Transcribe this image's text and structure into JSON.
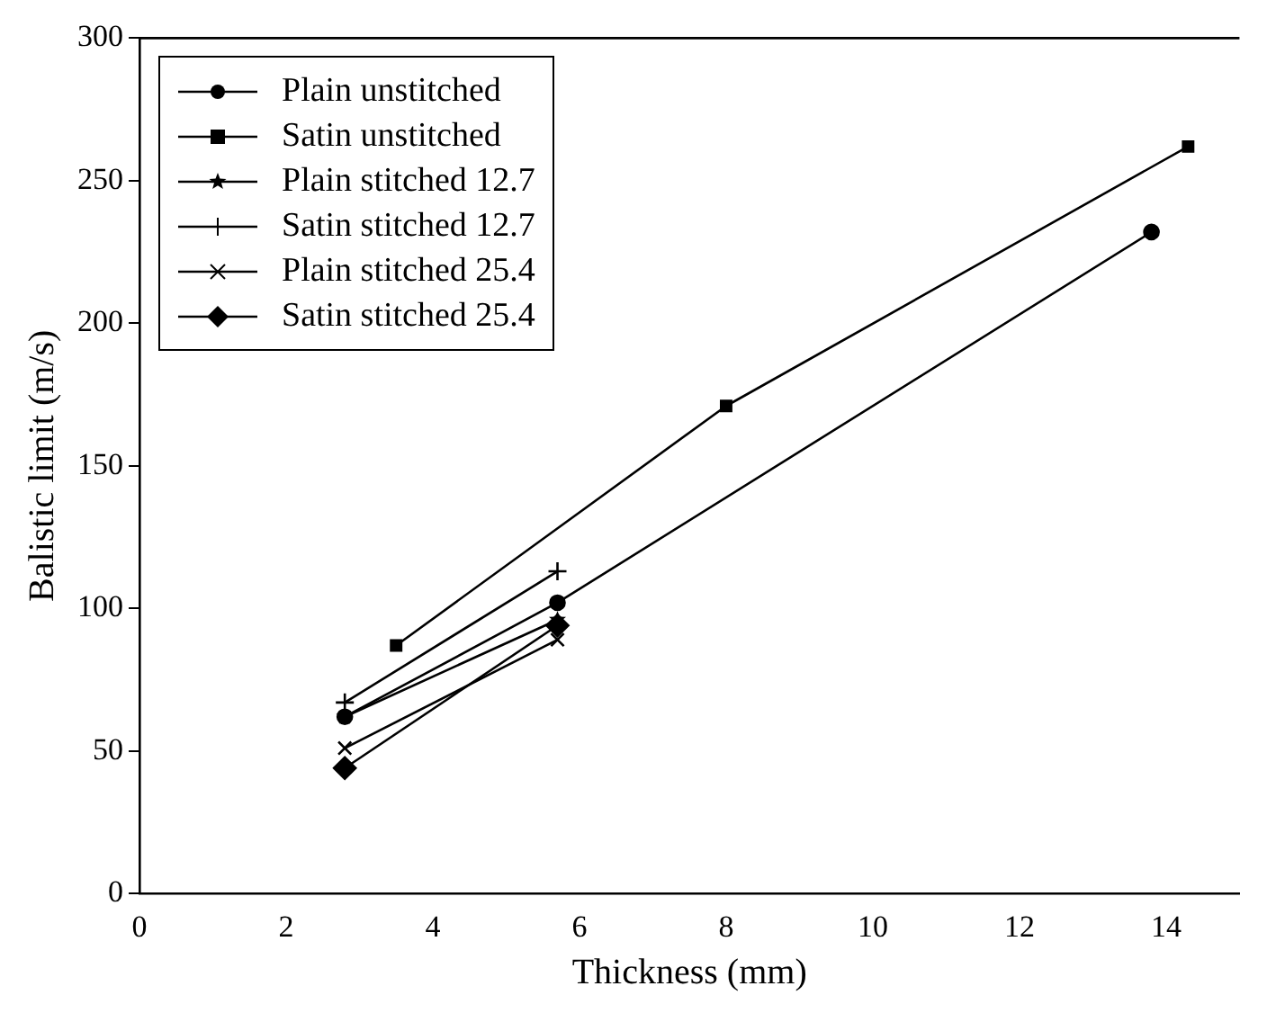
{
  "chart_data": {
    "type": "line",
    "xlabel": "Thickness (mm)",
    "ylabel": "Balistic limit (m/s)",
    "xlim": [
      0,
      15
    ],
    "xticks": [
      0,
      2,
      4,
      6,
      8,
      10,
      12,
      14
    ],
    "ylim": [
      0,
      300
    ],
    "yticks": [
      0,
      50,
      100,
      150,
      200,
      250,
      300
    ],
    "grid": false,
    "legend": "top left",
    "series": [
      {
        "name": "Plain unstitched",
        "color": "#000000",
        "marker": "circle",
        "x": [
          2.8,
          5.7,
          13.8
        ],
        "values": [
          62,
          102,
          232
        ]
      },
      {
        "name": "Satin unstitched",
        "color": "#000000",
        "marker": "square",
        "x": [
          3.5,
          8.0,
          14.3
        ],
        "values": [
          87,
          171,
          262
        ]
      },
      {
        "name": "Plain stitched 12.7",
        "color": "#000000",
        "marker": "star",
        "x": [
          2.8,
          5.7
        ],
        "values": [
          62,
          96
        ]
      },
      {
        "name": "Satin stitched 12.7",
        "color": "#000000",
        "marker": "cross",
        "x": [
          2.8,
          5.7
        ],
        "values": [
          67,
          113
        ]
      },
      {
        "name": "Plain stitched 25.4",
        "color": "#000000",
        "marker": "x",
        "x": [
          2.8,
          5.7
        ],
        "values": [
          51,
          89
        ]
      },
      {
        "name": "Satin stitched 25.4",
        "color": "#000000",
        "marker": "diamond",
        "x": [
          2.8,
          5.7
        ],
        "values": [
          44,
          94
        ]
      }
    ]
  }
}
